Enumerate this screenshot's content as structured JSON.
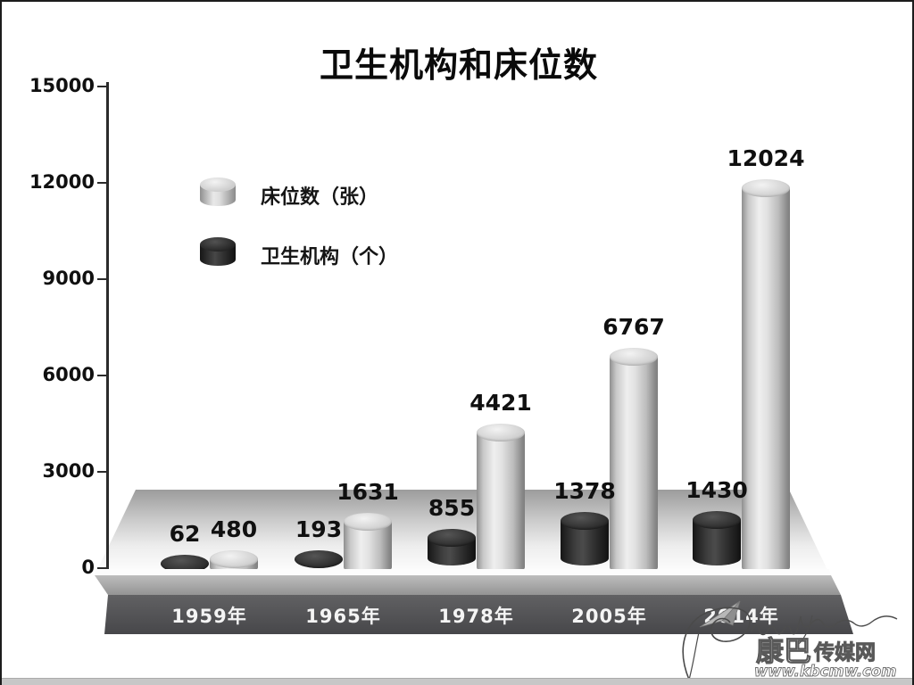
{
  "title": "卫生机构和床位数",
  "chart_data": {
    "type": "bar",
    "subtype": "3d-cylinder",
    "categories": [
      "1959年",
      "1965年",
      "1978年",
      "2005年",
      "2014年"
    ],
    "series": [
      {
        "name": "床位数（张）",
        "color": "#d9d9d9",
        "values": [
          480,
          1631,
          4421,
          6767,
          12024
        ]
      },
      {
        "name": "卫生机构（个）",
        "color": "#2e2e2e",
        "values": [
          62,
          193,
          855,
          1378,
          1430
        ]
      }
    ],
    "title": "卫生机构和床位数",
    "xlabel": "",
    "ylabel": "",
    "ylim": [
      0,
      15000
    ],
    "yticks": [
      0,
      3000,
      6000,
      9000,
      12000,
      15000
    ],
    "grid": false,
    "legend_position": "upper-left-inside",
    "data_labels": true
  },
  "legend": {
    "items": [
      {
        "label": "床位数（张）",
        "swatch": "light-cylinder-icon"
      },
      {
        "label": "卫生机构（个）",
        "swatch": "dark-cylinder-icon"
      }
    ]
  },
  "watermark": {
    "site_name_1": "康巴",
    "site_name_2": "传媒网",
    "url": "www.kbcmw.com"
  }
}
